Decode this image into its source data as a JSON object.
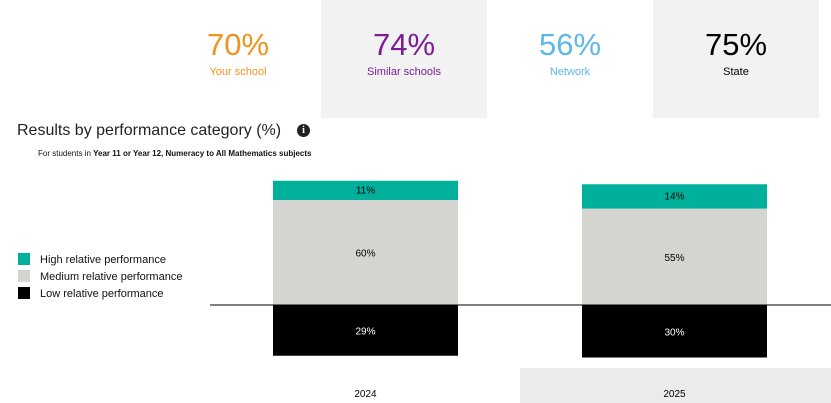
{
  "summary": [
    {
      "value": "70%",
      "label": "Your school",
      "color": "#f0921e"
    },
    {
      "value": "74%",
      "label": "Similar schools",
      "color": "#7b1e94"
    },
    {
      "value": "56%",
      "label": "Network",
      "color": "#5cb8e6"
    },
    {
      "value": "75%",
      "label": "State",
      "color": "#000000"
    }
  ],
  "heading": "Results by performance category (%)",
  "info_icon": "info-icon",
  "subtitle": {
    "prefix": "For students in ",
    "bold": "Year 11 or Year 12, Numeracy to All Mathematics subjects"
  },
  "chart_data": {
    "type": "bar",
    "stacked": true,
    "categories": [
      "2024",
      "2025"
    ],
    "series": [
      {
        "name": "High relative performance",
        "values": [
          11,
          14
        ],
        "color": "#00b09b"
      },
      {
        "name": "Medium relative performance",
        "values": [
          60,
          55
        ],
        "color": "#d4d4d0"
      },
      {
        "name": "Low relative performance",
        "values": [
          29,
          30
        ],
        "color": "#000000"
      }
    ],
    "data_labels": [
      [
        "11%",
        "60%",
        "29%"
      ],
      [
        "14%",
        "55%",
        "30%"
      ]
    ],
    "legend_position": "left",
    "grid": false
  }
}
